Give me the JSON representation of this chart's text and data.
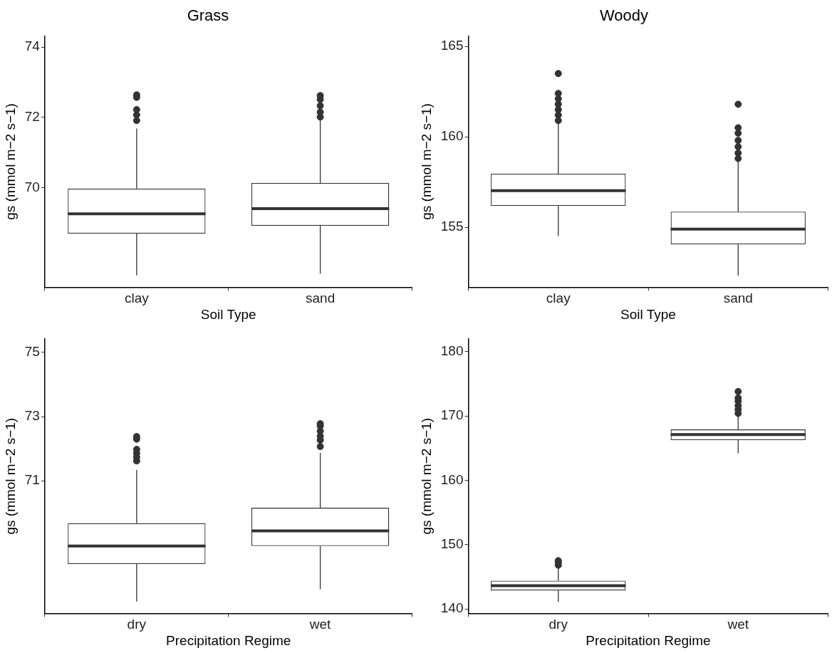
{
  "chart_data": [
    {
      "type": "box",
      "title": "Grass",
      "xlabel": "Soil Type",
      "ylabel": "gs (mmol m−2 s−1)",
      "categories": [
        "clay",
        "sand"
      ],
      "color": "#333333",
      "ylim": [
        67.16,
        74.32
      ],
      "yticks": [
        70,
        72,
        74
      ],
      "grid": false,
      "legend": false,
      "marker": "circle",
      "boxes": [
        {
          "low": 67.5,
          "q1": 68.69,
          "median": 69.25,
          "q3": 69.97,
          "high": 71.68,
          "outliers": [
            71.91,
            72.07,
            72.22,
            72.57,
            72.64
          ]
        },
        {
          "low": 67.55,
          "q1": 68.91,
          "median": 69.4,
          "q3": 70.13,
          "high": 71.96,
          "outliers": [
            72.01,
            72.15,
            72.33,
            72.51,
            72.62
          ]
        }
      ]
    },
    {
      "type": "box",
      "title": "Woody",
      "xlabel": "Soil Type",
      "ylabel": "gs (mmol m−2 s−1)",
      "categories": [
        "clay",
        "sand"
      ],
      "color": "#333333",
      "ylim": [
        151.68,
        165.58
      ],
      "yticks": [
        155,
        160,
        165
      ],
      "grid": false,
      "legend": false,
      "marker": "circle",
      "boxes": [
        {
          "low": 154.51,
          "q1": 156.17,
          "median": 157.02,
          "q3": 157.96,
          "high": 160.73,
          "outliers": [
            160.9,
            161.2,
            161.5,
            161.8,
            162.1,
            162.4,
            163.5
          ]
        },
        {
          "low": 152.33,
          "q1": 154.05,
          "median": 154.9,
          "q3": 155.86,
          "high": 158.65,
          "outliers": [
            158.8,
            159.1,
            159.45,
            159.8,
            160.2,
            160.5,
            161.8
          ]
        }
      ]
    },
    {
      "type": "box",
      "xlabel": "Precipitation Regime",
      "ylabel": "gs (mmol m−2 s−1)",
      "categories": [
        "dry",
        "wet"
      ],
      "color": "#333333",
      "ylim": [
        66.87,
        75.42
      ],
      "yticks": [
        71,
        73,
        75
      ],
      "grid": false,
      "legend": false,
      "marker": "circle",
      "boxes": [
        {
          "low": 67.24,
          "q1": 68.41,
          "median": 68.97,
          "q3": 69.68,
          "high": 71.34,
          "outliers": [
            71.62,
            71.74,
            71.86,
            71.98,
            72.3,
            72.38
          ]
        },
        {
          "low": 67.62,
          "q1": 68.97,
          "median": 69.44,
          "q3": 70.16,
          "high": 71.87,
          "outliers": [
            72.07,
            72.27,
            72.39,
            72.55,
            72.71,
            72.78
          ]
        }
      ]
    },
    {
      "type": "box",
      "xlabel": "Precipitation Regime",
      "ylabel": "gs (mmol m−2 s−1)",
      "categories": [
        "dry",
        "wet"
      ],
      "color": "#333333",
      "ylim": [
        139.3,
        181.97
      ],
      "yticks": [
        140,
        150,
        160,
        170,
        180
      ],
      "grid": false,
      "legend": false,
      "marker": "circle",
      "boxes": [
        {
          "low": 141.1,
          "q1": 142.87,
          "median": 143.61,
          "q3": 144.39,
          "high": 146.36,
          "outliers": [
            146.8,
            147.2,
            147.5
          ]
        },
        {
          "low": 164.2,
          "q1": 166.25,
          "median": 167.1,
          "q3": 167.9,
          "high": 170.0,
          "outliers": [
            170.4,
            171.0,
            171.6,
            172.3,
            172.8,
            173.8
          ]
        }
      ]
    }
  ]
}
